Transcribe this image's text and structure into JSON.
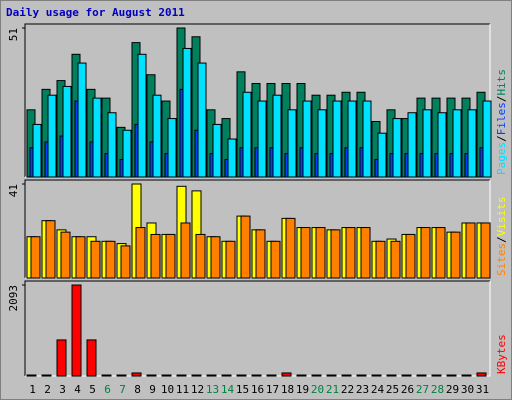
{
  "chart_data": [
    {
      "type": "bar",
      "title": "Daily usage for August 2011",
      "title_color": "#0000c0",
      "categories": [
        "1",
        "2",
        "3",
        "4",
        "5",
        "6",
        "7",
        "8",
        "9",
        "10",
        "11",
        "12",
        "13",
        "14",
        "15",
        "16",
        "17",
        "18",
        "19",
        "20",
        "21",
        "22",
        "23",
        "24",
        "25",
        "26",
        "27",
        "28",
        "29",
        "30",
        "31"
      ],
      "category_colors": [
        "#000000",
        "#000000",
        "#000000",
        "#000000",
        "#000000",
        "#008040",
        "#008040",
        "#000000",
        "#000000",
        "#000000",
        "#000000",
        "#000000",
        "#008040",
        "#008040",
        "#000000",
        "#000000",
        "#000000",
        "#000000",
        "#000000",
        "#008040",
        "#008040",
        "#000000",
        "#000000",
        "#000000",
        "#000000",
        "#000000",
        "#008040",
        "#008040",
        "#000000",
        "#000000",
        "#000000"
      ],
      "legend_separator": "/",
      "ylim": [
        0,
        51
      ],
      "yticks": [
        51
      ],
      "series": [
        {
          "name": "Hits",
          "color": "#00805c",
          "values": [
            23,
            30,
            33,
            42,
            30,
            27,
            17,
            46,
            35,
            26,
            51,
            48,
            23,
            20,
            36,
            32,
            32,
            32,
            32,
            28,
            28,
            29,
            29,
            19,
            23,
            20,
            27,
            27,
            27,
            27,
            29
          ]
        },
        {
          "name": "Files",
          "color": "#0040ff",
          "values": [
            10,
            12,
            14,
            26,
            12,
            8,
            6,
            18,
            12,
            8,
            30,
            16,
            8,
            6,
            10,
            10,
            10,
            8,
            10,
            8,
            8,
            10,
            10,
            6,
            8,
            8,
            8,
            8,
            8,
            8,
            10
          ]
        },
        {
          "name": "Pages",
          "color": "#00e0ff",
          "values": [
            18,
            28,
            31,
            39,
            27,
            22,
            16,
            42,
            28,
            20,
            44,
            39,
            18,
            13,
            29,
            26,
            28,
            23,
            26,
            23,
            26,
            26,
            26,
            15,
            20,
            22,
            23,
            22,
            23,
            23,
            26
          ]
        }
      ]
    },
    {
      "type": "bar",
      "legend_separator": "/",
      "ylim": [
        0,
        41
      ],
      "yticks": [
        41
      ],
      "series": [
        {
          "name": "Visits",
          "color": "#ffff00",
          "values": [
            18,
            25,
            21,
            18,
            18,
            16,
            15,
            41,
            24,
            19,
            40,
            38,
            18,
            16,
            27,
            21,
            16,
            26,
            22,
            22,
            21,
            22,
            22,
            16,
            17,
            19,
            22,
            22,
            20,
            24,
            24
          ]
        },
        {
          "name": "Sites",
          "color": "#ff8000",
          "values": [
            18,
            25,
            20,
            18,
            16,
            16,
            14,
            22,
            19,
            19,
            24,
            19,
            18,
            16,
            27,
            21,
            16,
            26,
            22,
            22,
            21,
            22,
            22,
            16,
            16,
            19,
            22,
            22,
            20,
            24,
            24
          ]
        }
      ]
    },
    {
      "type": "bar",
      "ylim": [
        0,
        2093
      ],
      "yticks": [
        2093
      ],
      "series": [
        {
          "name": "KBytes",
          "color": "#ff0000",
          "values": [
            10,
            10,
            830,
            2093,
            830,
            10,
            10,
            70,
            10,
            10,
            10,
            10,
            10,
            10,
            10,
            10,
            10,
            70,
            10,
            10,
            10,
            10,
            10,
            10,
            10,
            10,
            10,
            10,
            10,
            10,
            70
          ]
        }
      ]
    }
  ]
}
